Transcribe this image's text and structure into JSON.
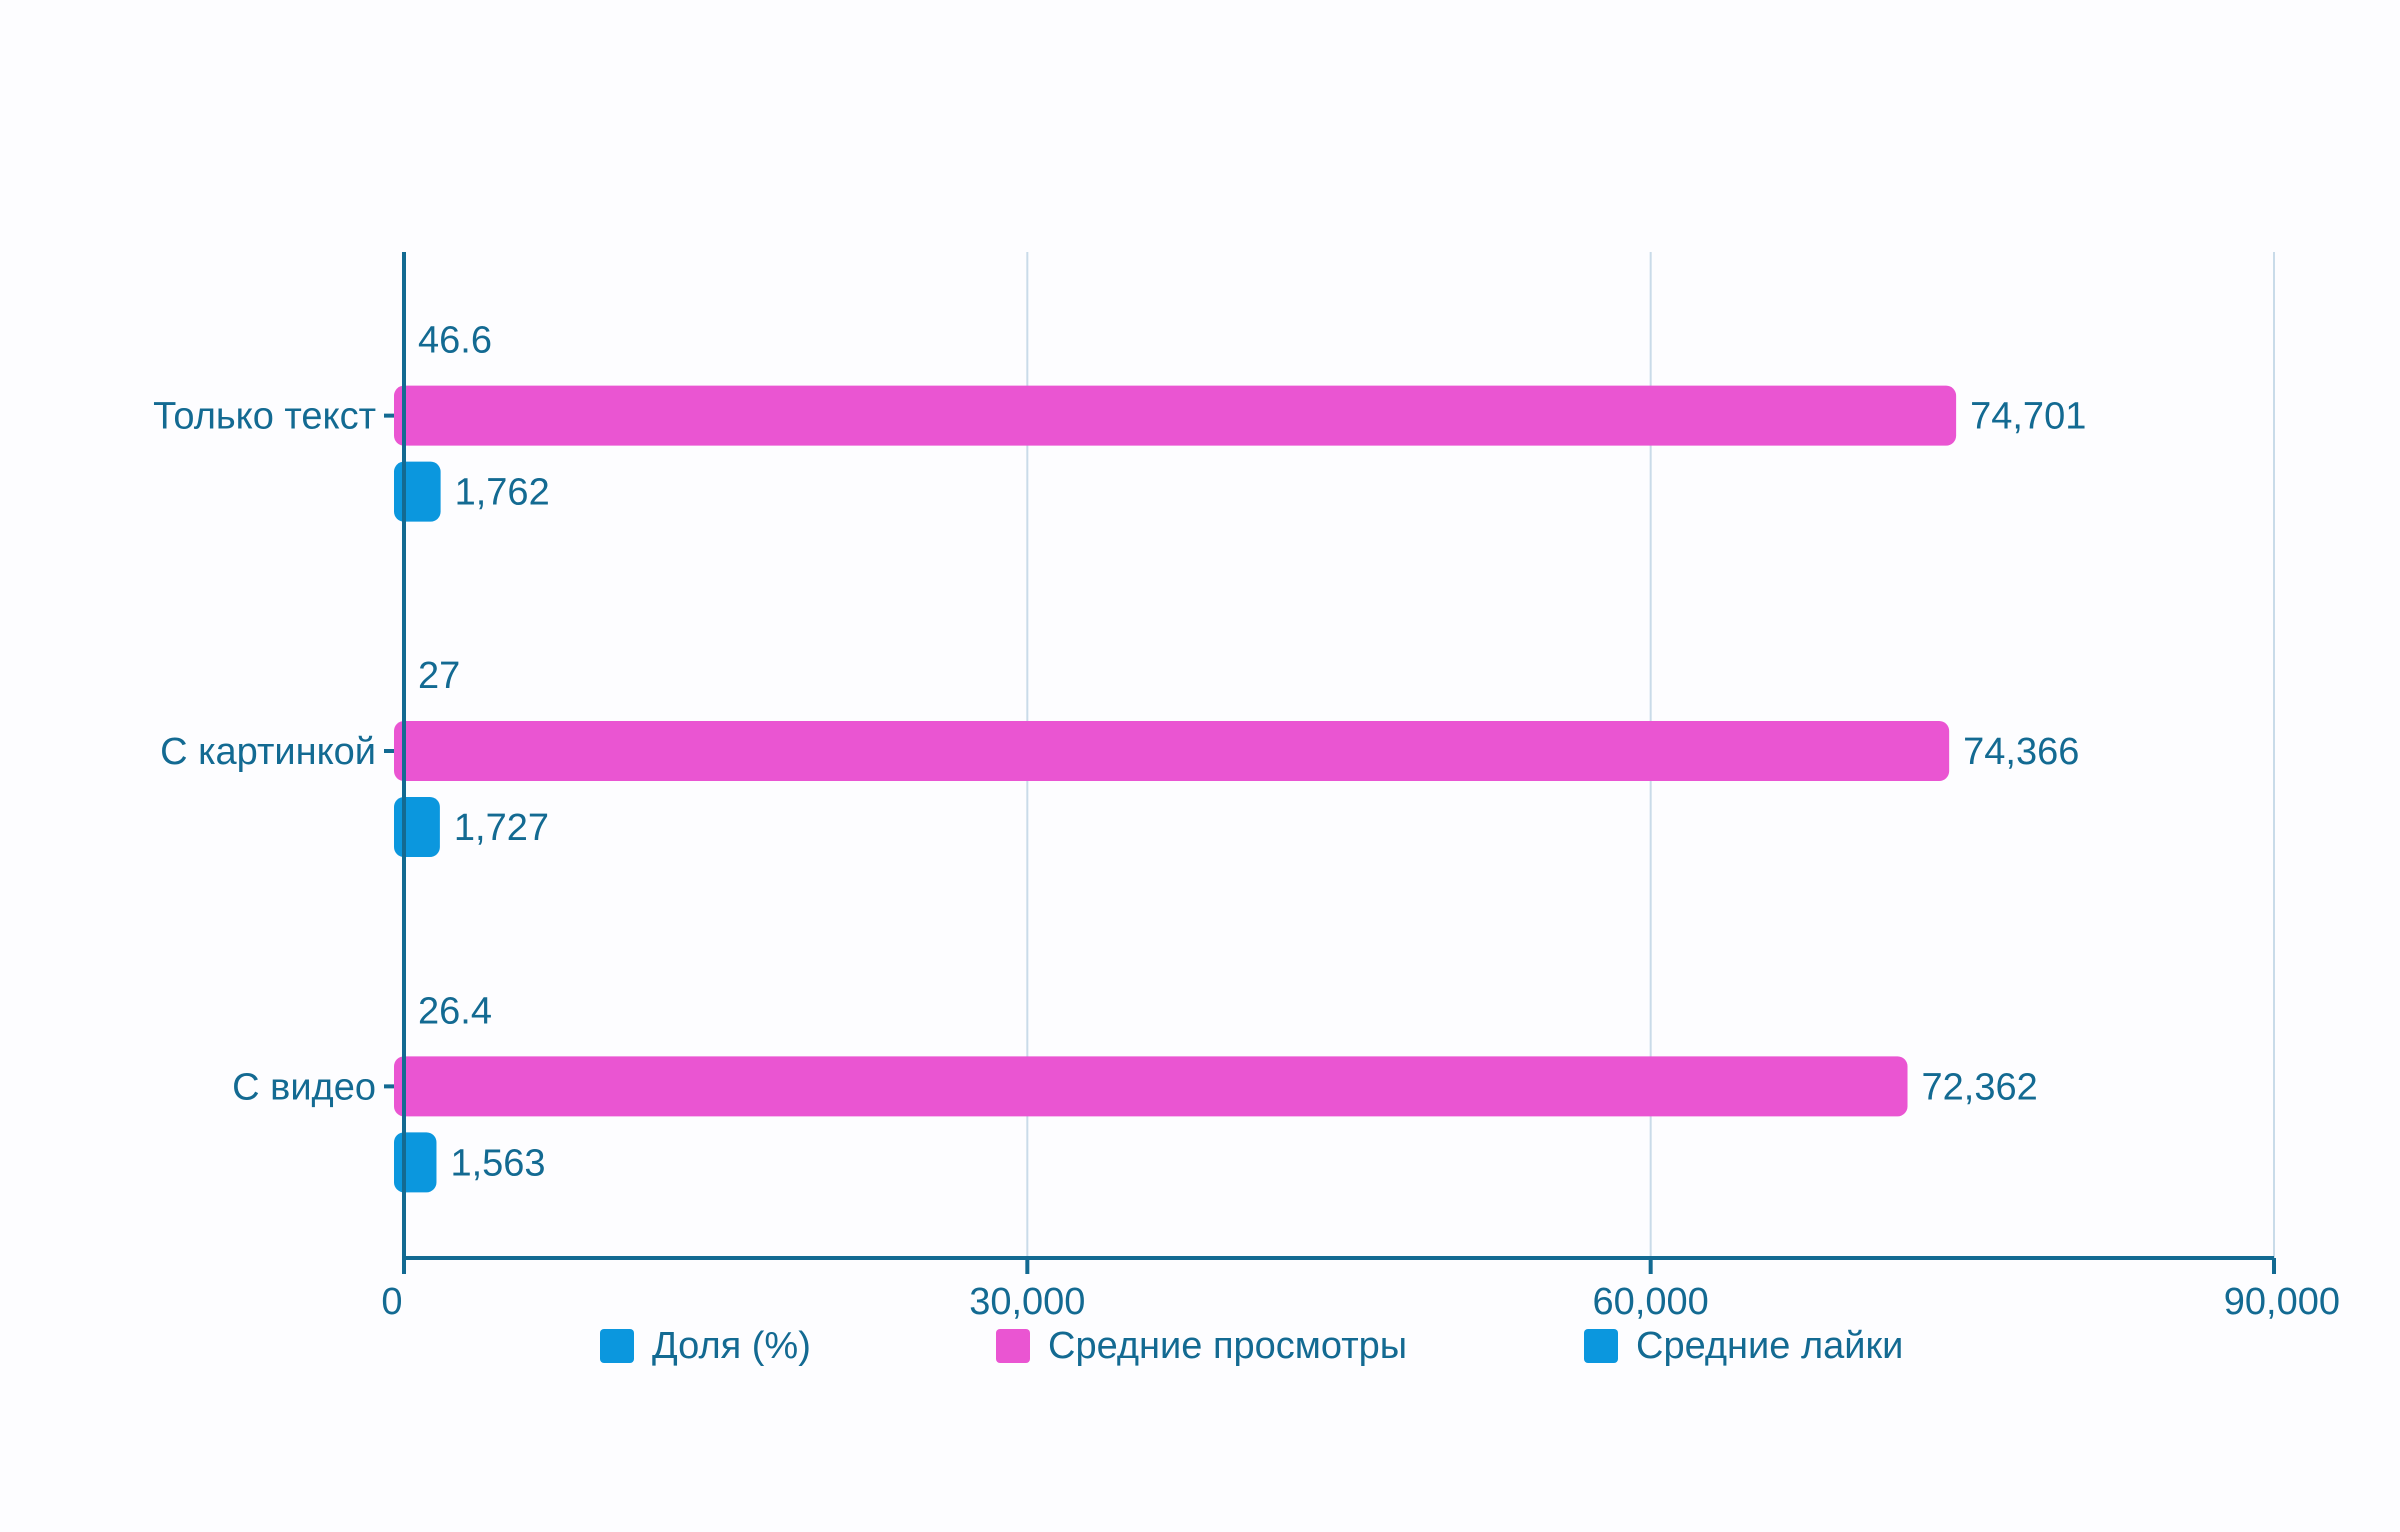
{
  "chart_data": {
    "type": "bar",
    "orientation": "horizontal",
    "categories": [
      "Только текст",
      "С картинкой",
      "С видео"
    ],
    "series": [
      {
        "name": "Доля (%)",
        "values": [
          46.6,
          27,
          26.4
        ],
        "color": "#0b97de"
      },
      {
        "name": "Средние просмотры",
        "values": [
          74701,
          74366,
          72362
        ],
        "color": "#ea55d2"
      },
      {
        "name": "Средние лайки",
        "values": [
          1762,
          1727,
          1563
        ],
        "color": "#0b97de"
      }
    ],
    "data_labels": [
      [
        "46.6",
        "27",
        "26.4"
      ],
      [
        "74,701",
        "74,366",
        "72,362"
      ],
      [
        "1,762",
        "1,727",
        "1,563"
      ]
    ],
    "xlim": [
      0,
      90000
    ],
    "xticks": [
      0,
      30000,
      60000,
      90000
    ],
    "xtick_labels": [
      "0",
      "30,000",
      "60,000",
      "90,000"
    ],
    "grid": true,
    "legend_position": "bottom",
    "title": "",
    "xlabel": "",
    "ylabel": ""
  },
  "colors": {
    "axis": "#136a92",
    "grid": "#c9dbe9",
    "text": "#136a92",
    "background": "#fdfdff"
  }
}
